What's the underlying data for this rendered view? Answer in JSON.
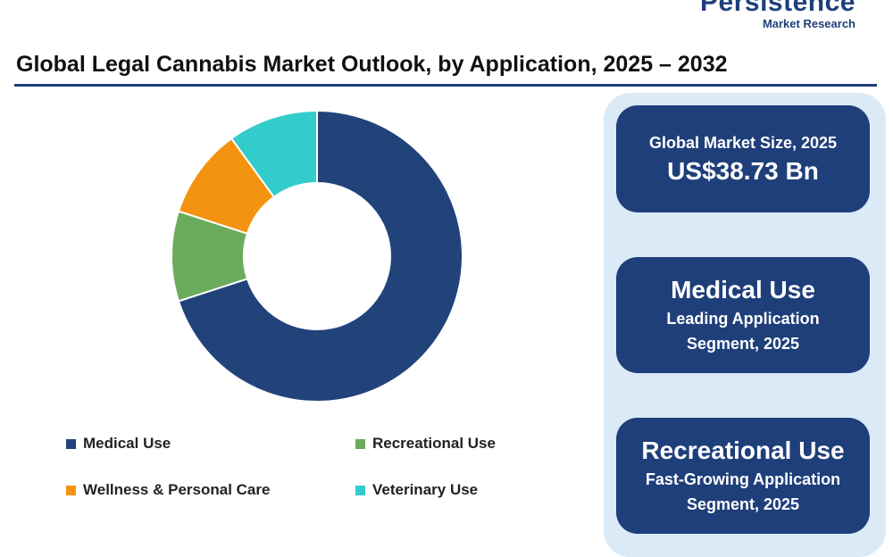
{
  "brand": {
    "name": "Persistence",
    "tagline": "Market Research"
  },
  "title": "Global Legal Cannabis Market Outlook, by Application, 2025 – 2032",
  "chart_data": {
    "type": "pie",
    "donut": true,
    "title": "",
    "categories": [
      "Medical Use",
      "Recreational Use",
      "Wellness & Personal Care",
      "Veterinary Use"
    ],
    "values": [
      70,
      10,
      10,
      10
    ],
    "colors": [
      "#22427a",
      "#6aab5e",
      "#f4930f",
      "#33cccc"
    ],
    "legend": "bottom",
    "start_angle_deg": 0,
    "direction": "clockwise"
  },
  "cards": [
    {
      "lines": [
        "Global Market Size, 2025"
      ],
      "highlight": "US$38.73 Bn"
    },
    {
      "highlight": "Medical Use",
      "lines": [
        "Leading Application",
        "Segment, 2025"
      ]
    },
    {
      "highlight": "Recreational Use",
      "lines": [
        "Fast-Growing Application",
        "Segment, 2025"
      ]
    }
  ]
}
